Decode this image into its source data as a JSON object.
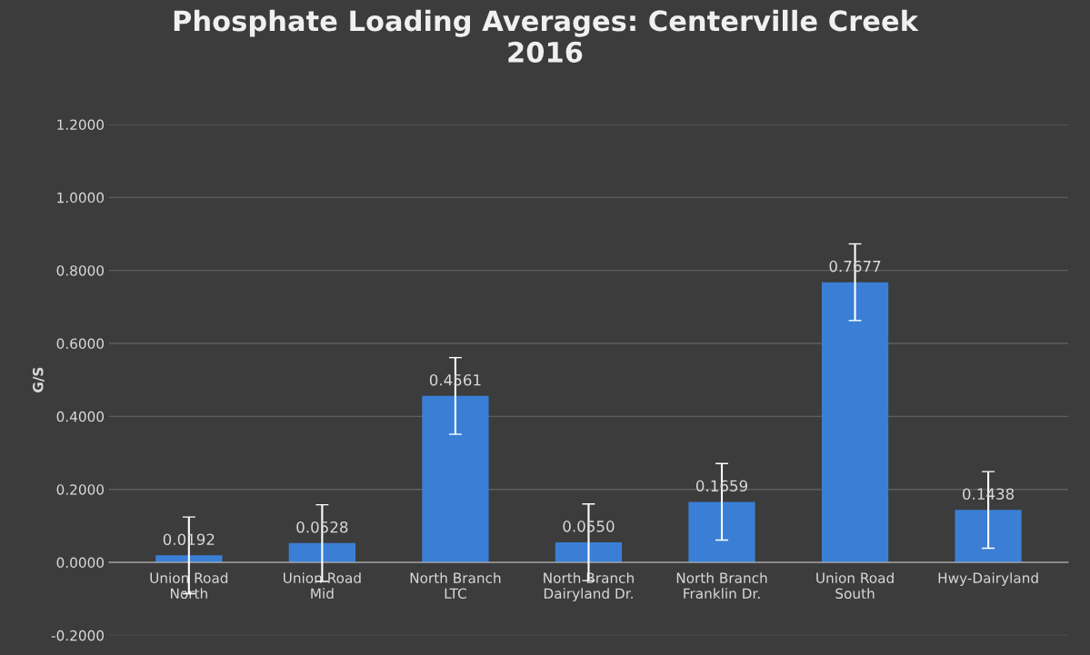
{
  "chart_data": {
    "type": "bar",
    "title": "Phosphate Loading Averages: Centerville Creek\n2016",
    "ylabel": "G/S",
    "categories": [
      "Union Road\nNorth",
      "Union Road\nMid",
      "North Branch\nLTC",
      "North Branch\nDairyland Dr.",
      "North Branch\nFranklin Dr.",
      "Union Road\nSouth",
      "Hwy-Dairyland"
    ],
    "values": [
      0.0192,
      0.0528,
      0.4561,
      0.055,
      0.1659,
      0.7677,
      0.1438
    ],
    "errors": [
      0.105,
      0.105,
      0.105,
      0.105,
      0.105,
      0.105,
      0.105
    ],
    "color": "#3a7fd5",
    "value_labels": [
      "0.0192",
      "0.0528",
      "0.4561",
      "0.0550",
      "0.1659",
      "0.7677",
      "0.1438"
    ],
    "ylim": [
      -0.2,
      1.2
    ],
    "yticks": [
      {
        "value": -0.2,
        "label": "-0.2000"
      },
      {
        "value": 0,
        "label": "0.0000"
      },
      {
        "value": 0.2,
        "label": "0.2000"
      },
      {
        "value": 0.4,
        "label": "0.4000"
      },
      {
        "value": 0.6,
        "label": "0.6000"
      },
      {
        "value": 0.8,
        "label": "0.8000"
      },
      {
        "value": 1.0,
        "label": "1.0000"
      },
      {
        "value": 1.2,
        "label": "1.2000"
      }
    ],
    "grid": "y"
  }
}
